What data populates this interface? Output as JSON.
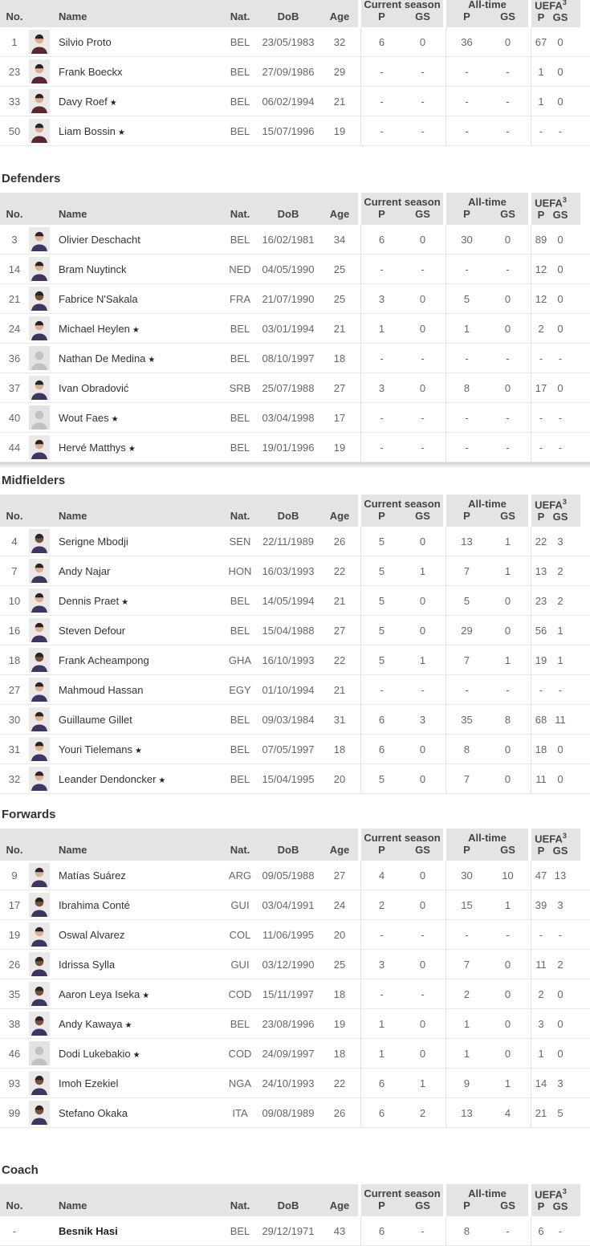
{
  "star_symbol": "★",
  "headers": {
    "no": "No.",
    "name": "Name",
    "nat": "Nat.",
    "dob": "DoB",
    "age": "Age",
    "p": "P",
    "gs": "GS",
    "current_season": "Current season",
    "all_time": "All-time",
    "uefa": "UEFA",
    "uefa_sup": "3"
  },
  "palette": {
    "header_bg": "#e4e4e4",
    "header_text": "#444444",
    "row_line": "#e8e8e8",
    "photo_bg": "#e9e9e9",
    "silhouette_bg": "#e3e3e3",
    "silhouette_fg": "#c2c2c2",
    "skin_light": "#dfae8c",
    "skin_dark": "#7a5136",
    "hair": "#2b2320",
    "kit_gk": "#59272f",
    "kit_field": "#3f3560"
  },
  "sections": [
    {
      "title": "",
      "shadow_after": false,
      "players": [
        {
          "no": "1",
          "name": "Silvio Proto",
          "star": false,
          "bold": false,
          "nat": "BEL",
          "dob": "23/05/1983",
          "age": "32",
          "cs_p": "6",
          "cs_gs": "0",
          "at_p": "36",
          "at_gs": "0",
          "ue_p": "67",
          "ue_gs": "0",
          "photo": "photo",
          "skin": "light",
          "kit": "gk"
        },
        {
          "no": "23",
          "name": "Frank Boeckx",
          "star": false,
          "bold": false,
          "nat": "BEL",
          "dob": "27/09/1986",
          "age": "29",
          "cs_p": "-",
          "cs_gs": "-",
          "at_p": "-",
          "at_gs": "-",
          "ue_p": "1",
          "ue_gs": "0",
          "photo": "photo",
          "skin": "light",
          "kit": "gk"
        },
        {
          "no": "33",
          "name": "Davy Roef",
          "star": true,
          "bold": false,
          "nat": "BEL",
          "dob": "06/02/1994",
          "age": "21",
          "cs_p": "-",
          "cs_gs": "-",
          "at_p": "-",
          "at_gs": "-",
          "ue_p": "1",
          "ue_gs": "0",
          "photo": "photo",
          "skin": "light",
          "kit": "gk"
        },
        {
          "no": "50",
          "name": "Liam Bossin",
          "star": true,
          "bold": false,
          "nat": "BEL",
          "dob": "15/07/1996",
          "age": "19",
          "cs_p": "-",
          "cs_gs": "-",
          "at_p": "-",
          "at_gs": "-",
          "ue_p": "-",
          "ue_gs": "-",
          "photo": "photo",
          "skin": "light",
          "kit": "gk"
        }
      ]
    },
    {
      "title": "Defenders",
      "shadow_after": true,
      "players": [
        {
          "no": "3",
          "name": "Olivier Deschacht",
          "star": false,
          "bold": false,
          "nat": "BEL",
          "dob": "16/02/1981",
          "age": "34",
          "cs_p": "6",
          "cs_gs": "0",
          "at_p": "30",
          "at_gs": "0",
          "ue_p": "89",
          "ue_gs": "0",
          "photo": "photo",
          "skin": "light",
          "kit": "field"
        },
        {
          "no": "14",
          "name": "Bram Nuytinck",
          "star": false,
          "bold": false,
          "nat": "NED",
          "dob": "04/05/1990",
          "age": "25",
          "cs_p": "-",
          "cs_gs": "-",
          "at_p": "-",
          "at_gs": "-",
          "ue_p": "12",
          "ue_gs": "0",
          "photo": "photo",
          "skin": "light",
          "kit": "field"
        },
        {
          "no": "21",
          "name": "Fabrice N'Sakala",
          "star": false,
          "bold": false,
          "nat": "FRA",
          "dob": "21/07/1990",
          "age": "25",
          "cs_p": "3",
          "cs_gs": "0",
          "at_p": "5",
          "at_gs": "0",
          "ue_p": "12",
          "ue_gs": "0",
          "photo": "photo",
          "skin": "dark",
          "kit": "field"
        },
        {
          "no": "24",
          "name": "Michael Heylen",
          "star": true,
          "bold": false,
          "nat": "BEL",
          "dob": "03/01/1994",
          "age": "21",
          "cs_p": "1",
          "cs_gs": "0",
          "at_p": "1",
          "at_gs": "0",
          "ue_p": "2",
          "ue_gs": "0",
          "photo": "photo",
          "skin": "light",
          "kit": "field"
        },
        {
          "no": "36",
          "name": "Nathan De Medina",
          "star": true,
          "bold": false,
          "nat": "BEL",
          "dob": "08/10/1997",
          "age": "18",
          "cs_p": "-",
          "cs_gs": "-",
          "at_p": "-",
          "at_gs": "-",
          "ue_p": "-",
          "ue_gs": "-",
          "photo": "silhouette",
          "skin": "light",
          "kit": "field"
        },
        {
          "no": "37",
          "name": "Ivan Obradović",
          "star": false,
          "bold": false,
          "nat": "SRB",
          "dob": "25/07/1988",
          "age": "27",
          "cs_p": "3",
          "cs_gs": "0",
          "at_p": "8",
          "at_gs": "0",
          "ue_p": "17",
          "ue_gs": "0",
          "photo": "photo",
          "skin": "light",
          "kit": "field"
        },
        {
          "no": "40",
          "name": "Wout Faes",
          "star": true,
          "bold": false,
          "nat": "BEL",
          "dob": "03/04/1998",
          "age": "17",
          "cs_p": "-",
          "cs_gs": "-",
          "at_p": "-",
          "at_gs": "-",
          "ue_p": "-",
          "ue_gs": "-",
          "photo": "silhouette",
          "skin": "light",
          "kit": "field"
        },
        {
          "no": "44",
          "name": "Hervé Matthys",
          "star": true,
          "bold": false,
          "nat": "BEL",
          "dob": "19/01/1996",
          "age": "19",
          "cs_p": "-",
          "cs_gs": "-",
          "at_p": "-",
          "at_gs": "-",
          "ue_p": "-",
          "ue_gs": "-",
          "photo": "photo",
          "skin": "light",
          "kit": "field"
        }
      ]
    },
    {
      "title": "Midfielders",
      "shadow_after": false,
      "players": [
        {
          "no": "4",
          "name": "Serigne Mbodji",
          "star": false,
          "bold": false,
          "nat": "SEN",
          "dob": "22/11/1989",
          "age": "26",
          "cs_p": "5",
          "cs_gs": "0",
          "at_p": "13",
          "at_gs": "1",
          "ue_p": "22",
          "ue_gs": "3",
          "photo": "photo",
          "skin": "dark",
          "kit": "field"
        },
        {
          "no": "7",
          "name": "Andy Najar",
          "star": false,
          "bold": false,
          "nat": "HON",
          "dob": "16/03/1993",
          "age": "22",
          "cs_p": "5",
          "cs_gs": "1",
          "at_p": "7",
          "at_gs": "1",
          "ue_p": "13",
          "ue_gs": "2",
          "photo": "photo",
          "skin": "light",
          "kit": "field"
        },
        {
          "no": "10",
          "name": "Dennis Praet",
          "star": true,
          "bold": false,
          "nat": "BEL",
          "dob": "14/05/1994",
          "age": "21",
          "cs_p": "5",
          "cs_gs": "0",
          "at_p": "5",
          "at_gs": "0",
          "ue_p": "23",
          "ue_gs": "2",
          "photo": "photo",
          "skin": "light",
          "kit": "field"
        },
        {
          "no": "16",
          "name": "Steven Defour",
          "star": false,
          "bold": false,
          "nat": "BEL",
          "dob": "15/04/1988",
          "age": "27",
          "cs_p": "5",
          "cs_gs": "0",
          "at_p": "29",
          "at_gs": "0",
          "ue_p": "56",
          "ue_gs": "1",
          "photo": "photo",
          "skin": "light",
          "kit": "field"
        },
        {
          "no": "18",
          "name": "Frank Acheampong",
          "star": false,
          "bold": false,
          "nat": "GHA",
          "dob": "16/10/1993",
          "age": "22",
          "cs_p": "5",
          "cs_gs": "1",
          "at_p": "7",
          "at_gs": "1",
          "ue_p": "19",
          "ue_gs": "1",
          "photo": "photo",
          "skin": "dark",
          "kit": "field"
        },
        {
          "no": "27",
          "name": "Mahmoud Hassan",
          "star": false,
          "bold": false,
          "nat": "EGY",
          "dob": "01/10/1994",
          "age": "21",
          "cs_p": "-",
          "cs_gs": "-",
          "at_p": "-",
          "at_gs": "-",
          "ue_p": "-",
          "ue_gs": "-",
          "photo": "photo",
          "skin": "light",
          "kit": "field"
        },
        {
          "no": "30",
          "name": "Guillaume Gillet",
          "star": false,
          "bold": false,
          "nat": "BEL",
          "dob": "09/03/1984",
          "age": "31",
          "cs_p": "6",
          "cs_gs": "3",
          "at_p": "35",
          "at_gs": "8",
          "ue_p": "68",
          "ue_gs": "11",
          "photo": "photo",
          "skin": "light",
          "kit": "field"
        },
        {
          "no": "31",
          "name": "Youri Tielemans",
          "star": true,
          "bold": false,
          "nat": "BEL",
          "dob": "07/05/1997",
          "age": "18",
          "cs_p": "6",
          "cs_gs": "0",
          "at_p": "8",
          "at_gs": "0",
          "ue_p": "18",
          "ue_gs": "0",
          "photo": "photo",
          "skin": "light",
          "kit": "field"
        },
        {
          "no": "32",
          "name": "Leander Dendoncker",
          "star": true,
          "bold": false,
          "nat": "BEL",
          "dob": "15/04/1995",
          "age": "20",
          "cs_p": "5",
          "cs_gs": "0",
          "at_p": "7",
          "at_gs": "0",
          "ue_p": "11",
          "ue_gs": "0",
          "photo": "photo",
          "skin": "light",
          "kit": "field"
        }
      ]
    },
    {
      "title": "Forwards",
      "shadow_after": false,
      "players": [
        {
          "no": "9",
          "name": "Matías Suárez",
          "star": false,
          "bold": false,
          "nat": "ARG",
          "dob": "09/05/1988",
          "age": "27",
          "cs_p": "4",
          "cs_gs": "0",
          "at_p": "30",
          "at_gs": "10",
          "ue_p": "47",
          "ue_gs": "13",
          "photo": "photo",
          "skin": "light",
          "kit": "field"
        },
        {
          "no": "17",
          "name": "Ibrahima Conté",
          "star": false,
          "bold": false,
          "nat": "GUI",
          "dob": "03/04/1991",
          "age": "24",
          "cs_p": "2",
          "cs_gs": "0",
          "at_p": "15",
          "at_gs": "1",
          "ue_p": "39",
          "ue_gs": "3",
          "photo": "photo",
          "skin": "dark",
          "kit": "field"
        },
        {
          "no": "19",
          "name": "Oswal Alvarez",
          "star": false,
          "bold": false,
          "nat": "COL",
          "dob": "11/06/1995",
          "age": "20",
          "cs_p": "-",
          "cs_gs": "-",
          "at_p": "-",
          "at_gs": "-",
          "ue_p": "-",
          "ue_gs": "-",
          "photo": "photo",
          "skin": "light",
          "kit": "field"
        },
        {
          "no": "26",
          "name": "Idrissa Sylla",
          "star": false,
          "bold": false,
          "nat": "GUI",
          "dob": "03/12/1990",
          "age": "25",
          "cs_p": "3",
          "cs_gs": "0",
          "at_p": "7",
          "at_gs": "0",
          "ue_p": "11",
          "ue_gs": "2",
          "photo": "photo",
          "skin": "dark",
          "kit": "field"
        },
        {
          "no": "35",
          "name": "Aaron Leya Iseka",
          "star": true,
          "bold": false,
          "nat": "COD",
          "dob": "15/11/1997",
          "age": "18",
          "cs_p": "-",
          "cs_gs": "-",
          "at_p": "2",
          "at_gs": "0",
          "ue_p": "2",
          "ue_gs": "0",
          "photo": "photo",
          "skin": "dark",
          "kit": "field"
        },
        {
          "no": "38",
          "name": "Andy Kawaya",
          "star": true,
          "bold": false,
          "nat": "BEL",
          "dob": "23/08/1996",
          "age": "19",
          "cs_p": "1",
          "cs_gs": "0",
          "at_p": "1",
          "at_gs": "0",
          "ue_p": "3",
          "ue_gs": "0",
          "photo": "photo",
          "skin": "dark",
          "kit": "field"
        },
        {
          "no": "46",
          "name": "Dodi Lukebakio",
          "star": true,
          "bold": false,
          "nat": "COD",
          "dob": "24/09/1997",
          "age": "18",
          "cs_p": "1",
          "cs_gs": "0",
          "at_p": "1",
          "at_gs": "0",
          "ue_p": "1",
          "ue_gs": "0",
          "photo": "silhouette",
          "skin": "light",
          "kit": "field"
        },
        {
          "no": "93",
          "name": "Imoh Ezekiel",
          "star": false,
          "bold": false,
          "nat": "NGA",
          "dob": "24/10/1993",
          "age": "22",
          "cs_p": "6",
          "cs_gs": "1",
          "at_p": "9",
          "at_gs": "1",
          "ue_p": "14",
          "ue_gs": "3",
          "photo": "photo",
          "skin": "dark",
          "kit": "field"
        },
        {
          "no": "99",
          "name": "Stefano Okaka",
          "star": false,
          "bold": false,
          "nat": "ITA",
          "dob": "09/08/1989",
          "age": "26",
          "cs_p": "6",
          "cs_gs": "2",
          "at_p": "13",
          "at_gs": "4",
          "ue_p": "21",
          "ue_gs": "5",
          "photo": "photo",
          "skin": "dark",
          "kit": "field"
        }
      ]
    },
    {
      "title": "Coach",
      "shadow_after": false,
      "players": [
        {
          "no": "-",
          "name": "Besnik Hasi",
          "star": false,
          "bold": true,
          "nat": "BEL",
          "dob": "29/12/1971",
          "age": "43",
          "cs_p": "6",
          "cs_gs": "-",
          "at_p": "8",
          "at_gs": "-",
          "ue_p": "6",
          "ue_gs": "-",
          "photo": "none",
          "skin": "light",
          "kit": "field"
        }
      ]
    }
  ]
}
